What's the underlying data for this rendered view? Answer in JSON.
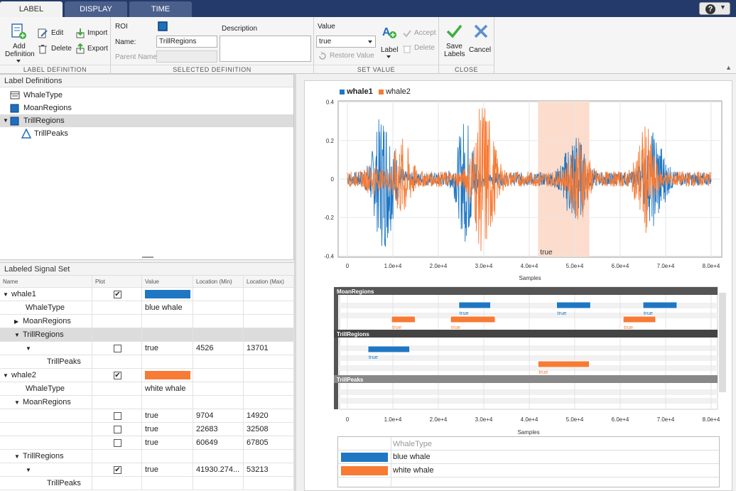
{
  "tabs": [
    {
      "label": "LABEL"
    },
    {
      "label": "DISPLAY"
    },
    {
      "label": "TIME"
    }
  ],
  "help_label": "?",
  "ribbon": {
    "label_definition": {
      "caption": "LABEL DEFINITION",
      "add_line1": "Add",
      "add_line2": "Definition",
      "edit": "Edit",
      "delete": "Delete",
      "import": "Import",
      "export": "Export"
    },
    "selected_definition": {
      "caption": "SELECTED DEFINITION",
      "roi_label": "ROI",
      "name_label": "Name:",
      "name_value": "TrillRegions",
      "parent_label": "Parent Name",
      "description_label": "Description"
    },
    "set_value": {
      "caption": "SET VALUE",
      "value_label": "Value",
      "value_selected": "true",
      "restore": "Restore Value",
      "label_btn": "Label",
      "accept": "Accept",
      "delete": "Delete"
    },
    "close": {
      "caption": "CLOSE",
      "save_line1": "Save",
      "save_line2": "Labels",
      "cancel": "Cancel"
    }
  },
  "label_definitions": {
    "title": "Label Definitions",
    "items": [
      {
        "label": "WhaleType"
      },
      {
        "label": "MoanRegions"
      },
      {
        "label": "TrillRegions"
      },
      {
        "label": "TrillPeaks"
      }
    ]
  },
  "signal_set": {
    "title": "Labeled Signal Set",
    "columns": [
      "Name",
      "Plot",
      "Value",
      "Location (Min)",
      "Location (Max)"
    ],
    "rows": [
      {
        "name": "whale1",
        "value": "",
        "min": "",
        "max": ""
      },
      {
        "name": "WhaleType",
        "value": "blue whale",
        "min": "",
        "max": ""
      },
      {
        "name": "MoanRegions",
        "value": "",
        "min": "",
        "max": ""
      },
      {
        "name": "TrillRegions",
        "value": "",
        "min": "",
        "max": ""
      },
      {
        "name": "",
        "value": "true",
        "min": "4526",
        "max": "13701"
      },
      {
        "name": "TrillPeaks",
        "value": "",
        "min": "",
        "max": ""
      },
      {
        "name": "whale2",
        "value": "",
        "min": "",
        "max": ""
      },
      {
        "name": "WhaleType",
        "value": "white whale",
        "min": "",
        "max": ""
      },
      {
        "name": "MoanRegions",
        "value": "",
        "min": "",
        "max": ""
      },
      {
        "name": "",
        "value": "true",
        "min": "9704",
        "max": "14920"
      },
      {
        "name": "",
        "value": "true",
        "min": "22683",
        "max": "32508"
      },
      {
        "name": "",
        "value": "true",
        "min": "60649",
        "max": "67805"
      },
      {
        "name": "TrillRegions",
        "value": "",
        "min": "",
        "max": ""
      },
      {
        "name": "",
        "value": "true",
        "min": "41930.274...",
        "max": "53213"
      },
      {
        "name": "TrillPeaks",
        "value": "",
        "min": "",
        "max": ""
      }
    ]
  },
  "colors": {
    "whale1": "#1f77c4",
    "whale2": "#f77b35",
    "region_highlight": "#fbd5c0"
  },
  "plot": {
    "legend": [
      "whale1",
      "whale2"
    ],
    "y_ticks": [
      "0.4",
      "0.2",
      "0",
      "-0.2",
      "-0.4"
    ],
    "x_ticks": [
      "0",
      "1.0e+4",
      "2.0e+4",
      "3.0e+4",
      "4.0e+4",
      "5.0e+4",
      "6.0e+4",
      "7.0e+4",
      "8.0e+4"
    ],
    "xlabel": "Samples",
    "region_label": "true"
  },
  "timeline": {
    "sections": [
      "MoanRegions",
      "TrillRegions",
      "TrillPeaks"
    ],
    "bar_label": "true",
    "x_ticks": [
      "0",
      "1.0e+4",
      "2.0e+4",
      "3.0e+4",
      "4.0e+4",
      "5.0e+4",
      "6.0e+4",
      "7.0e+4",
      "8.0e+4"
    ],
    "xlabel": "Samples"
  },
  "whale_table": {
    "header": "WhaleType",
    "rows": [
      "blue whale",
      "white whale"
    ]
  }
}
